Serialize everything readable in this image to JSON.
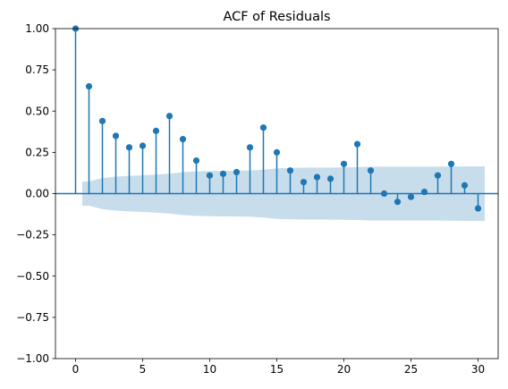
{
  "chart_data": {
    "type": "stem",
    "title": "ACF of Residuals",
    "xlabel": "",
    "ylabel": "",
    "xlim": [
      -1.5,
      31.5
    ],
    "ylim": [
      -1.0,
      1.0
    ],
    "xticks": [
      0,
      5,
      10,
      15,
      20,
      25,
      30
    ],
    "yticks": [
      -1.0,
      -0.75,
      -0.5,
      -0.25,
      0.0,
      0.25,
      0.5,
      0.75,
      1.0
    ],
    "xtick_labels": [
      "0",
      "5",
      "10",
      "15",
      "20",
      "25",
      "30"
    ],
    "ytick_labels": [
      "−1.00",
      "−0.75",
      "−0.50",
      "−0.25",
      "0.00",
      "0.25",
      "0.50",
      "0.75",
      "1.00"
    ],
    "grid": false,
    "lags": [
      0,
      1,
      2,
      3,
      4,
      5,
      6,
      7,
      8,
      9,
      10,
      11,
      12,
      13,
      14,
      15,
      16,
      17,
      18,
      19,
      20,
      21,
      22,
      23,
      24,
      25,
      26,
      27,
      28,
      29,
      30
    ],
    "values": [
      1.0,
      0.65,
      0.44,
      0.35,
      0.28,
      0.29,
      0.38,
      0.47,
      0.33,
      0.2,
      0.11,
      0.12,
      0.13,
      0.28,
      0.4,
      0.25,
      0.14,
      0.07,
      0.1,
      0.09,
      0.18,
      0.3,
      0.14,
      0.0,
      -0.05,
      -0.02,
      0.01,
      0.11,
      0.18,
      0.05,
      -0.09
    ],
    "confidence_band": {
      "x": [
        0.5,
        1,
        2,
        3,
        4,
        5,
        6,
        7,
        8,
        9,
        10,
        11,
        12,
        13,
        14,
        15,
        16,
        17,
        18,
        19,
        20,
        21,
        22,
        23,
        24,
        25,
        26,
        27,
        28,
        29,
        30,
        30.5
      ],
      "upper": [
        0.073,
        0.073,
        0.094,
        0.103,
        0.108,
        0.111,
        0.115,
        0.121,
        0.13,
        0.135,
        0.137,
        0.138,
        0.139,
        0.14,
        0.145,
        0.153,
        0.156,
        0.157,
        0.158,
        0.158,
        0.159,
        0.16,
        0.163,
        0.163,
        0.163,
        0.163,
        0.163,
        0.163,
        0.164,
        0.165,
        0.165,
        0.165
      ],
      "lower": [
        -0.073,
        -0.073,
        -0.094,
        -0.103,
        -0.108,
        -0.111,
        -0.115,
        -0.121,
        -0.13,
        -0.135,
        -0.137,
        -0.138,
        -0.139,
        -0.14,
        -0.145,
        -0.153,
        -0.156,
        -0.157,
        -0.158,
        -0.158,
        -0.159,
        -0.16,
        -0.163,
        -0.163,
        -0.163,
        -0.163,
        -0.163,
        -0.163,
        -0.164,
        -0.165,
        -0.165,
        -0.165
      ]
    },
    "colors": {
      "stem": "#1f77b4",
      "band": "#1f77b4",
      "axes": "#000000"
    }
  }
}
